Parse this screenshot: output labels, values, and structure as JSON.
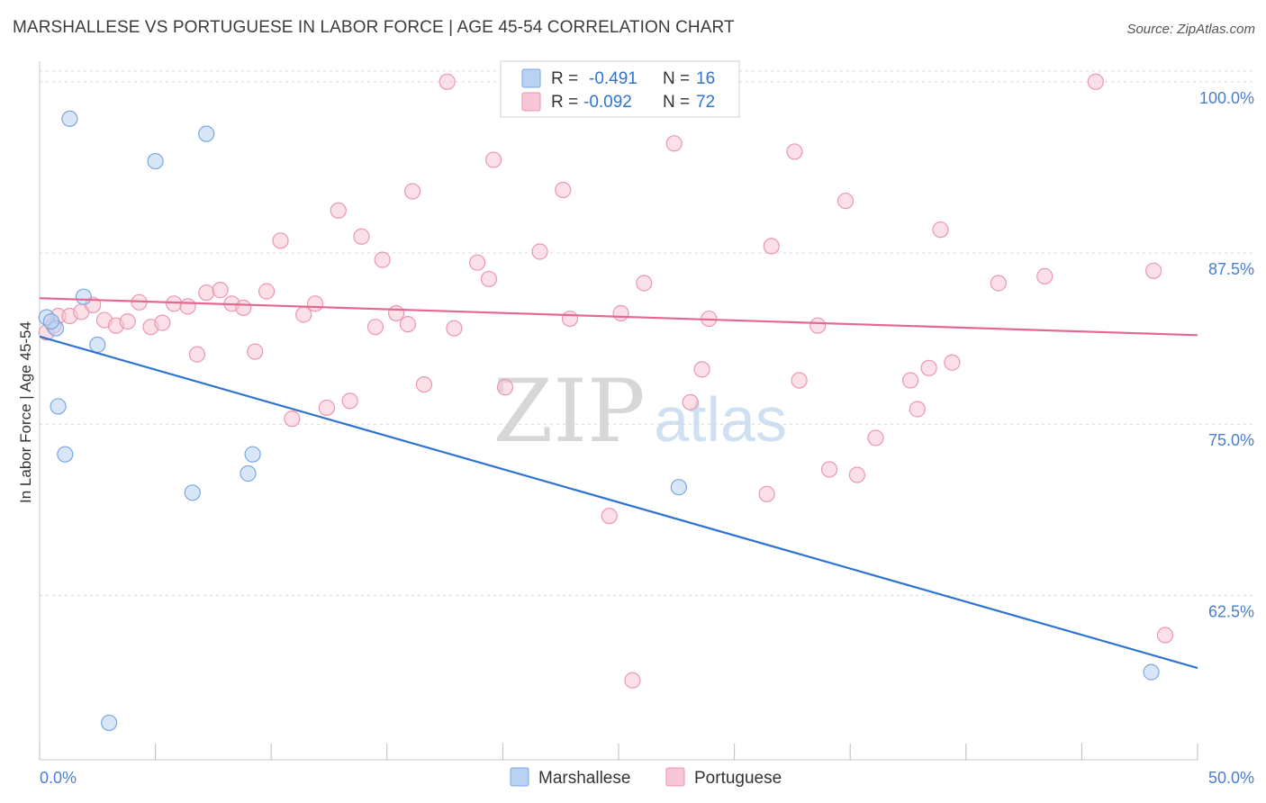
{
  "title": "MARSHALLESE VS PORTUGUESE IN LABOR FORCE | AGE 45-54 CORRELATION CHART",
  "source": "Source: ZipAtlas.com",
  "watermark": {
    "zip": "ZIP",
    "atlas": "atlas"
  },
  "colors": {
    "marshallese_fill": "#b8d2f2",
    "marshallese_stroke": "#7aa8df",
    "marshallese_line": "#2f74d0",
    "portuguese_fill": "#f7c6d4",
    "portuguese_stroke": "#eb97b1",
    "portuguese_line": "#e5698f",
    "tick_label": "#4a7fd0",
    "grid": "#d8d8d8"
  },
  "legend_box": {
    "rows": [
      {
        "r_label": "R =",
        "r_value": "-0.491",
        "n_label": "N =",
        "n_value": "16"
      },
      {
        "r_label": "R =",
        "r_value": "-0.092",
        "n_label": "N =",
        "n_value": "72"
      }
    ]
  },
  "bottom_legend": [
    "Marshallese",
    "Portuguese"
  ],
  "chart_data": {
    "type": "scatter",
    "xlabel": "",
    "ylabel": "In Labor Force | Age 45-54",
    "xlim": [
      0,
      50
    ],
    "ylim": [
      50.5,
      101.5
    ],
    "x_tick_labels": [
      "0.0%",
      "50.0%"
    ],
    "y_ticks": [
      62.5,
      75.0,
      87.5,
      100.0
    ],
    "y_tick_labels": [
      "62.5%",
      "75.0%",
      "87.5%",
      "100.0%"
    ],
    "grid": "horizontal dashed",
    "legend_placement": "bottom",
    "series": [
      {
        "name": "Marshallese",
        "points": [
          [
            0.3,
            82.8
          ],
          [
            0.7,
            82.0
          ],
          [
            0.8,
            76.3
          ],
          [
            1.1,
            72.8
          ],
          [
            1.3,
            97.3
          ],
          [
            1.9,
            84.3
          ],
          [
            2.5,
            80.8
          ],
          [
            3.0,
            53.2
          ],
          [
            5.0,
            94.2
          ],
          [
            6.6,
            70.0
          ],
          [
            7.2,
            96.2
          ],
          [
            9.0,
            71.4
          ],
          [
            9.2,
            72.8
          ],
          [
            27.6,
            70.4
          ],
          [
            48.0,
            56.9
          ],
          [
            0.5,
            82.5
          ]
        ],
        "trend": {
          "x": [
            0,
            50
          ],
          "y": [
            81.4,
            57.2
          ]
        }
      },
      {
        "name": "Portuguese",
        "points": [
          [
            0.3,
            81.7
          ],
          [
            0.6,
            82.2
          ],
          [
            0.8,
            82.9
          ],
          [
            1.3,
            82.9
          ],
          [
            1.8,
            83.2
          ],
          [
            2.3,
            83.7
          ],
          [
            2.8,
            82.6
          ],
          [
            3.3,
            82.2
          ],
          [
            3.8,
            82.5
          ],
          [
            4.3,
            83.9
          ],
          [
            4.8,
            82.1
          ],
          [
            5.3,
            82.4
          ],
          [
            5.8,
            83.8
          ],
          [
            6.4,
            83.6
          ],
          [
            6.8,
            80.1
          ],
          [
            7.2,
            84.6
          ],
          [
            7.8,
            84.8
          ],
          [
            8.3,
            83.8
          ],
          [
            8.8,
            83.5
          ],
          [
            9.3,
            80.3
          ],
          [
            9.8,
            84.7
          ],
          [
            10.4,
            88.4
          ],
          [
            10.9,
            75.4
          ],
          [
            11.4,
            83.0
          ],
          [
            11.9,
            83.8
          ],
          [
            12.4,
            76.2
          ],
          [
            12.9,
            90.6
          ],
          [
            13.4,
            76.7
          ],
          [
            13.9,
            88.7
          ],
          [
            14.5,
            82.1
          ],
          [
            14.8,
            87.0
          ],
          [
            15.4,
            83.1
          ],
          [
            15.9,
            82.3
          ],
          [
            16.1,
            92.0
          ],
          [
            16.6,
            77.9
          ],
          [
            17.6,
            100.0
          ],
          [
            17.9,
            82.0
          ],
          [
            18.9,
            86.8
          ],
          [
            19.4,
            85.6
          ],
          [
            19.6,
            94.3
          ],
          [
            20.1,
            77.7
          ],
          [
            21.6,
            87.6
          ],
          [
            22.6,
            92.1
          ],
          [
            22.9,
            82.7
          ],
          [
            24.6,
            68.3
          ],
          [
            25.1,
            83.1
          ],
          [
            25.6,
            56.3
          ],
          [
            26.1,
            85.3
          ],
          [
            26.9,
            100.0
          ],
          [
            27.4,
            95.5
          ],
          [
            28.1,
            76.6
          ],
          [
            28.6,
            79.0
          ],
          [
            28.9,
            82.7
          ],
          [
            31.4,
            69.9
          ],
          [
            31.6,
            88.0
          ],
          [
            32.6,
            94.9
          ],
          [
            32.8,
            78.2
          ],
          [
            33.6,
            82.2
          ],
          [
            34.1,
            71.7
          ],
          [
            34.8,
            91.3
          ],
          [
            35.3,
            71.3
          ],
          [
            36.1,
            74.0
          ],
          [
            37.6,
            78.2
          ],
          [
            37.9,
            76.1
          ],
          [
            38.4,
            79.1
          ],
          [
            38.9,
            89.2
          ],
          [
            39.4,
            79.5
          ],
          [
            41.4,
            85.3
          ],
          [
            43.4,
            85.8
          ],
          [
            45.6,
            100.0
          ],
          [
            48.1,
            86.2
          ],
          [
            48.6,
            59.6
          ]
        ],
        "trend": {
          "x": [
            0,
            50
          ],
          "y": [
            84.2,
            81.5
          ]
        }
      }
    ]
  }
}
